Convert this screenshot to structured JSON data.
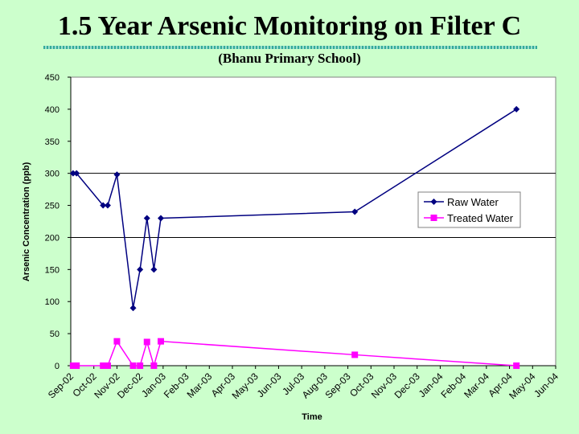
{
  "title": "1.5 Year Arsenic Monitoring on Filter C",
  "subtitle": "(Bhanu Primary School)",
  "chart_data": {
    "type": "line",
    "xlabel": "Time",
    "ylabel": "Arsenic Concentration (ppb)",
    "ylim": [
      0,
      450
    ],
    "yticks": [
      0,
      50,
      100,
      150,
      200,
      250,
      300,
      350,
      400,
      450
    ],
    "gridlines": [
      200,
      300
    ],
    "xtick_labels": [
      "Sep-02",
      "Oct-02",
      "Nov-02",
      "Dec-02",
      "Jan-03",
      "Feb-03",
      "Mar-03",
      "Apr-03",
      "May-03",
      "Jun-03",
      "Jul-03",
      "Aug-03",
      "Sep-03",
      "Oct-03",
      "Nov-03",
      "Dec-03",
      "Jan-04",
      "Feb-04",
      "Mar-04",
      "Apr-04",
      "May-04",
      "Jun-04"
    ],
    "legend_position": "right",
    "series": [
      {
        "name": "Raw Water",
        "color": "#000080",
        "marker": "diamond",
        "x": [
          0.1,
          0.25,
          1.4,
          1.6,
          2.0,
          2.7,
          3.0,
          3.3,
          3.6,
          3.9,
          12.3,
          19.3
        ],
        "y": [
          300,
          300,
          250,
          250,
          298,
          90,
          150,
          230,
          150,
          230,
          240,
          400
        ]
      },
      {
        "name": "Treated Water",
        "color": "#ff00ff",
        "marker": "square",
        "x": [
          0.1,
          0.25,
          1.4,
          1.6,
          2.0,
          2.7,
          3.0,
          3.3,
          3.6,
          3.9,
          12.3,
          19.3
        ],
        "y": [
          0,
          0,
          0,
          0,
          38,
          0,
          0,
          37,
          0,
          38,
          17,
          0
        ]
      }
    ]
  }
}
